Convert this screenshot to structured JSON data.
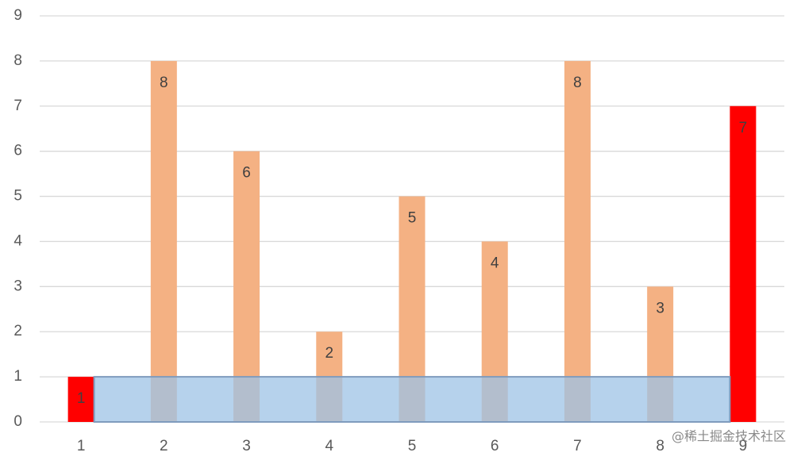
{
  "chart_data": {
    "type": "bar",
    "categories": [
      "1",
      "2",
      "3",
      "4",
      "5",
      "6",
      "7",
      "8",
      "9"
    ],
    "values": [
      1,
      8,
      6,
      2,
      5,
      4,
      8,
      3,
      7
    ],
    "colors": [
      "#ff0000",
      "#f4b183",
      "#f4b183",
      "#f4b183",
      "#f4b183",
      "#f4b183",
      "#f4b183",
      "#f4b183",
      "#ff0000"
    ],
    "overlay": {
      "value": 1,
      "color": "#9dc3e6"
    },
    "ylim": [
      0,
      9
    ],
    "yticks": [
      0,
      1,
      2,
      3,
      4,
      5,
      6,
      7,
      8,
      9
    ],
    "grid": true,
    "watermark": "@稀土掘金技术社区"
  }
}
